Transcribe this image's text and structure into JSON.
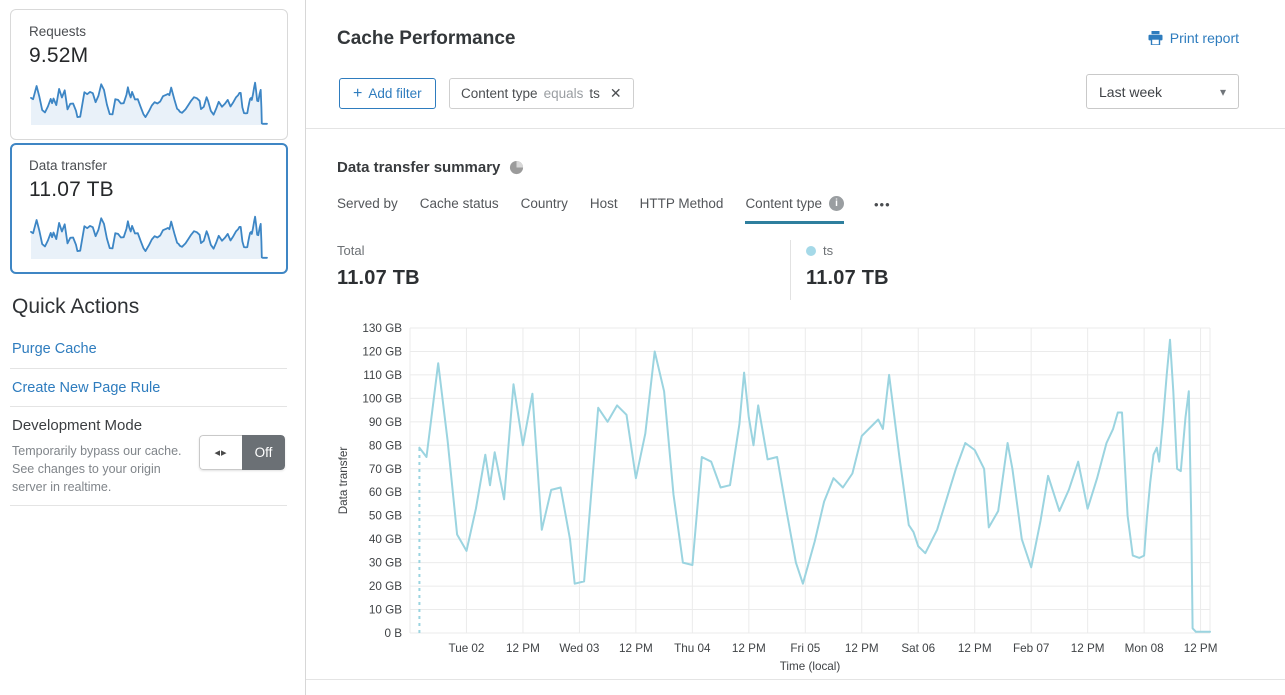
{
  "sidebar": {
    "cards": [
      {
        "label": "Requests",
        "value": "9.52M"
      },
      {
        "label": "Data transfer",
        "value": "11.07 TB"
      }
    ],
    "quick_actions": {
      "title": "Quick Actions",
      "links": [
        {
          "label": "Purge Cache"
        },
        {
          "label": "Create New Page Rule"
        }
      ],
      "dev_mode": {
        "title": "Development Mode",
        "description": "Temporarily bypass our cache. See changes to your origin server in realtime.",
        "toggle_state": "Off",
        "toggle_icon": "◂▸"
      }
    }
  },
  "header": {
    "title": "Cache Performance",
    "print_label": "Print report",
    "add_filter_label": "Add filter",
    "plus_glyph": "+",
    "filter_chip": {
      "field": "Content type",
      "operator": "equals",
      "value": "ts",
      "close_glyph": "✕"
    },
    "time_range": "Last week",
    "caret_glyph": "▾"
  },
  "summary": {
    "title": "Data transfer summary",
    "tabs": [
      {
        "label": "Served by"
      },
      {
        "label": "Cache status"
      },
      {
        "label": "Country"
      },
      {
        "label": "Host"
      },
      {
        "label": "HTTP Method"
      },
      {
        "label": "Content type",
        "active": true,
        "info_glyph": "i"
      }
    ],
    "more_glyph": "•••",
    "total": {
      "label": "Total",
      "value": "11.07 TB"
    },
    "series_legend": {
      "label": "ts",
      "value": "11.07 TB"
    }
  },
  "colors": {
    "accent_link": "#2e7cbe",
    "card_border_selected": "#3f86c4",
    "sparkline_stroke": "#3d86c5",
    "sparkline_fill": "#e9f1f9",
    "tab_underline": "#2e7f9e",
    "legend_dot": "#a5d9e8",
    "chart_line": "#9bd4e0",
    "gridline": "#ebebeb"
  },
  "chart_data": {
    "type": "line",
    "title": "Data transfer summary — ts (Last week)",
    "xlabel": "Time (local)",
    "ylabel": "Data transfer",
    "ylim": [
      0,
      130
    ],
    "x_range_hours": [
      0,
      170
    ],
    "x_epoch": "hours since Mon 01 12:00 PM (local)",
    "grid": true,
    "y_ticks": [
      {
        "v": 0,
        "label": "0 B"
      },
      {
        "v": 10,
        "label": "10 GB"
      },
      {
        "v": 20,
        "label": "20 GB"
      },
      {
        "v": 30,
        "label": "30 GB"
      },
      {
        "v": 40,
        "label": "40 GB"
      },
      {
        "v": 50,
        "label": "50 GB"
      },
      {
        "v": 60,
        "label": "60 GB"
      },
      {
        "v": 70,
        "label": "70 GB"
      },
      {
        "v": 80,
        "label": "80 GB"
      },
      {
        "v": 90,
        "label": "90 GB"
      },
      {
        "v": 100,
        "label": "100 GB"
      },
      {
        "v": 110,
        "label": "110 GB"
      },
      {
        "v": 120,
        "label": "120 GB"
      },
      {
        "v": 130,
        "label": "130 GB"
      }
    ],
    "x_ticks": [
      {
        "t": 12,
        "label": "Tue 02"
      },
      {
        "t": 24,
        "label": "12 PM"
      },
      {
        "t": 36,
        "label": "Wed 03"
      },
      {
        "t": 48,
        "label": "12 PM"
      },
      {
        "t": 60,
        "label": "Thu 04"
      },
      {
        "t": 72,
        "label": "12 PM"
      },
      {
        "t": 84,
        "label": "Fri 05"
      },
      {
        "t": 96,
        "label": "12 PM"
      },
      {
        "t": 108,
        "label": "Sat 06"
      },
      {
        "t": 120,
        "label": "12 PM"
      },
      {
        "t": 132,
        "label": "Feb 07"
      },
      {
        "t": 144,
        "label": "12 PM"
      },
      {
        "t": 156,
        "label": "Mon 08"
      },
      {
        "t": 168,
        "label": "12 PM"
      }
    ],
    "dashed_lead_in": true,
    "series": [
      {
        "name": "ts",
        "unit": "GB",
        "points": [
          [
            2,
            79
          ],
          [
            3.5,
            75
          ],
          [
            6,
            115
          ],
          [
            8,
            82
          ],
          [
            10,
            42
          ],
          [
            12,
            35
          ],
          [
            14,
            53
          ],
          [
            16,
            76
          ],
          [
            17,
            63
          ],
          [
            18,
            77
          ],
          [
            20,
            57
          ],
          [
            22,
            106
          ],
          [
            24,
            80
          ],
          [
            26,
            102
          ],
          [
            28,
            44
          ],
          [
            30,
            61
          ],
          [
            32,
            62
          ],
          [
            34,
            40
          ],
          [
            35,
            21
          ],
          [
            37,
            22
          ],
          [
            40,
            96
          ],
          [
            42,
            90
          ],
          [
            44,
            97
          ],
          [
            46,
            93
          ],
          [
            48,
            66
          ],
          [
            50,
            85
          ],
          [
            52,
            120
          ],
          [
            54,
            103
          ],
          [
            56,
            59
          ],
          [
            58,
            30
          ],
          [
            60,
            29
          ],
          [
            62,
            75
          ],
          [
            64,
            73
          ],
          [
            66,
            62
          ],
          [
            68,
            63
          ],
          [
            70,
            89
          ],
          [
            71,
            111
          ],
          [
            72,
            92
          ],
          [
            73,
            80
          ],
          [
            74,
            97
          ],
          [
            76,
            74
          ],
          [
            78,
            75
          ],
          [
            80,
            52
          ],
          [
            82,
            30
          ],
          [
            83.5,
            21
          ],
          [
            86,
            39
          ],
          [
            88,
            56
          ],
          [
            90,
            66
          ],
          [
            92,
            62
          ],
          [
            94,
            68
          ],
          [
            96,
            84
          ],
          [
            98,
            88
          ],
          [
            99.5,
            91
          ],
          [
            100.5,
            87
          ],
          [
            101.8,
            110
          ],
          [
            104,
            75
          ],
          [
            106,
            46
          ],
          [
            107,
            43
          ],
          [
            108,
            37
          ],
          [
            109.5,
            34
          ],
          [
            112,
            44
          ],
          [
            114,
            57
          ],
          [
            116,
            70
          ],
          [
            118,
            81
          ],
          [
            120,
            78
          ],
          [
            122,
            70
          ],
          [
            123,
            45
          ],
          [
            125,
            52
          ],
          [
            127,
            81
          ],
          [
            128,
            70
          ],
          [
            130,
            40
          ],
          [
            132,
            28
          ],
          [
            134,
            48
          ],
          [
            135.6,
            67
          ],
          [
            138,
            52
          ],
          [
            140,
            61
          ],
          [
            142,
            73
          ],
          [
            144,
            53
          ],
          [
            146,
            66
          ],
          [
            148,
            81
          ],
          [
            149.4,
            87
          ],
          [
            150.4,
            94
          ],
          [
            151.3,
            94
          ],
          [
            152.5,
            50
          ],
          [
            153.6,
            33
          ],
          [
            155,
            32
          ],
          [
            156,
            33
          ],
          [
            156.6,
            49
          ],
          [
            157.3,
            64
          ],
          [
            158,
            76
          ],
          [
            158.7,
            79
          ],
          [
            159.2,
            73
          ],
          [
            160,
            90
          ],
          [
            160.8,
            110
          ],
          [
            161.5,
            125
          ],
          [
            162.2,
            103
          ],
          [
            163,
            70
          ],
          [
            163.8,
            69
          ],
          [
            164.8,
            92
          ],
          [
            165.5,
            103
          ],
          [
            166,
            50
          ],
          [
            166.3,
            2
          ],
          [
            167,
            0.5
          ],
          [
            170,
            0.5
          ]
        ]
      }
    ]
  }
}
